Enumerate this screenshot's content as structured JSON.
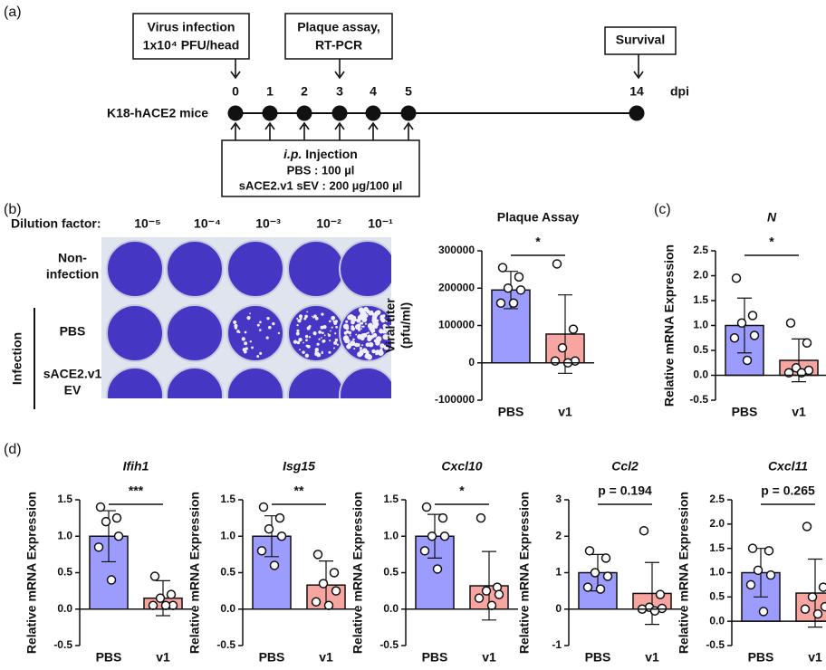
{
  "panel_labels": [
    "(a)",
    "(b)",
    "(c)",
    "(d)"
  ],
  "timeline": {
    "top_boxes": [
      {
        "lines": [
          "Virus infection",
          "1x10⁴ PFU/head"
        ]
      },
      {
        "lines": [
          "Plaque assay,",
          "RT-PCR"
        ]
      },
      {
        "lines": [
          "Survival"
        ]
      }
    ],
    "subject": "K18-hACE2 mice",
    "days": [
      "0",
      "1",
      "2",
      "3",
      "4",
      "5",
      "14"
    ],
    "unit": "dpi",
    "injection": {
      "italic": "i.p.",
      "rest": " Injection",
      "lines": [
        "PBS : 100 µl",
        "sACE2.v1 sEV : 200 µg/100 µl"
      ]
    }
  },
  "plaque_image": {
    "dilution_title": "Dilution factor:",
    "dilutions": [
      "10⁻⁵",
      "10⁻⁴",
      "10⁻³",
      "10⁻²",
      "10⁻¹"
    ],
    "group_label": "Infection",
    "rows": [
      [
        "Non-",
        "infection"
      ],
      [
        "PBS"
      ],
      [
        "sACE2.v1",
        "EV"
      ]
    ]
  },
  "chart_data": [
    {
      "type": "bar",
      "title": "Plaque Assay",
      "title_italic": false,
      "ylabel": [
        "Viral titer",
        "(pfu/ml)"
      ],
      "categories": [
        "PBS",
        "v1"
      ],
      "colors": [
        "#9c9cff",
        "#f6a5a1"
      ],
      "values": [
        195000,
        77000
      ],
      "errors": [
        50000,
        105000
      ],
      "points": [
        [
          255000,
          230000,
          200000,
          195000,
          160000,
          160000
        ],
        [
          265000,
          90000,
          40000,
          5000,
          5000,
          0
        ]
      ],
      "significance": "*",
      "ylim": [
        -100000,
        300000
      ],
      "yticks": [
        -100000,
        0,
        100000,
        200000,
        300000
      ]
    },
    {
      "type": "bar",
      "title": "N",
      "title_italic": true,
      "ylabel": [
        "Relative mRNA Expression"
      ],
      "categories": [
        "PBS",
        "v1"
      ],
      "colors": [
        "#9c9cff",
        "#f6a5a1"
      ],
      "values": [
        1.0,
        0.3
      ],
      "errors": [
        0.55,
        0.43
      ],
      "points": [
        [
          1.95,
          1.2,
          1.05,
          0.8,
          0.75,
          0.3
        ],
        [
          1.05,
          0.65,
          0.15,
          0.1,
          0.05,
          0.05
        ]
      ],
      "significance": "*",
      "ylim": [
        -0.5,
        2.5
      ],
      "yticks": [
        -0.5,
        {
          "value": 0,
          "label": "0.0"
        },
        0.5,
        {
          "value": 1,
          "label": "1.0"
        },
        1.5,
        {
          "value": 2,
          "label": "2.0"
        },
        2.5
      ]
    },
    {
      "type": "bar",
      "title": "Ifih1",
      "title_italic": true,
      "ylabel": [
        "Relative mRNA Expression"
      ],
      "categories": [
        "PBS",
        "v1"
      ],
      "colors": [
        "#9c9cff",
        "#f6a5a1"
      ],
      "values": [
        1.0,
        0.15
      ],
      "errors": [
        0.35,
        0.24
      ],
      "points": [
        [
          1.4,
          1.25,
          1.2,
          1.0,
          0.85,
          0.4
        ],
        [
          0.45,
          0.2,
          0.15,
          0.05,
          0.05,
          0.05
        ]
      ],
      "significance": "***",
      "ylim": [
        -0.5,
        1.5
      ],
      "yticks": [
        -0.5,
        {
          "value": 0,
          "label": "0.0"
        },
        0.5,
        {
          "value": 1,
          "label": "1.0"
        },
        1.5
      ]
    },
    {
      "type": "bar",
      "title": "Isg15",
      "title_italic": true,
      "ylabel": [
        "Relative mRNA Expression"
      ],
      "categories": [
        "PBS",
        "v1"
      ],
      "colors": [
        "#9c9cff",
        "#f6a5a1"
      ],
      "values": [
        1.0,
        0.33
      ],
      "errors": [
        0.28,
        0.33
      ],
      "points": [
        [
          1.4,
          1.25,
          1.1,
          1.0,
          0.8,
          0.6
        ],
        [
          0.75,
          0.5,
          0.35,
          0.25,
          0.1,
          0.05
        ]
      ],
      "significance": "**",
      "ylim": [
        -0.5,
        1.5
      ],
      "yticks": [
        -0.5,
        {
          "value": 0,
          "label": "0.0"
        },
        0.5,
        {
          "value": 1,
          "label": "1.0"
        },
        1.5
      ]
    },
    {
      "type": "bar",
      "title": "Cxcl10",
      "title_italic": true,
      "ylabel": [
        "Relative mRNA Expression"
      ],
      "categories": [
        "PBS",
        "v1"
      ],
      "colors": [
        "#9c9cff",
        "#f6a5a1"
      ],
      "values": [
        1.0,
        0.32
      ],
      "errors": [
        0.3,
        0.47
      ],
      "points": [
        [
          1.4,
          1.25,
          1.0,
          1.0,
          0.8,
          0.55
        ],
        [
          1.25,
          0.3,
          0.25,
          0.2,
          0.15,
          0.05
        ]
      ],
      "significance": "*",
      "ylim": [
        -0.5,
        1.5
      ],
      "yticks": [
        -0.5,
        {
          "value": 0,
          "label": "0.0"
        },
        0.5,
        {
          "value": 1,
          "label": "1.0"
        },
        1.5
      ]
    },
    {
      "type": "bar",
      "title": "Ccl2",
      "title_italic": true,
      "ylabel": [
        "Relative mRNA Expression"
      ],
      "categories": [
        "PBS",
        "v1"
      ],
      "colors": [
        "#9c9cff",
        "#f6a5a1"
      ],
      "values": [
        1.0,
        0.43
      ],
      "errors": [
        0.5,
        0.85
      ],
      "points": [
        [
          1.6,
          1.4,
          1.0,
          0.9,
          0.6,
          0.55
        ],
        [
          2.15,
          0.4,
          0.05,
          0.02,
          0.0,
          -0.05
        ]
      ],
      "significance": "p = 0.194",
      "ylim": [
        -1,
        3
      ],
      "yticks": [
        -1,
        0,
        1,
        2,
        3
      ]
    },
    {
      "type": "bar",
      "title": "Cxcl11",
      "title_italic": true,
      "ylabel": [
        "Relative mRNA Expression"
      ],
      "categories": [
        "PBS",
        "v1"
      ],
      "colors": [
        "#9c9cff",
        "#f6a5a1"
      ],
      "values": [
        1.0,
        0.58
      ],
      "errors": [
        0.5,
        0.7
      ],
      "points": [
        [
          1.5,
          1.45,
          1.05,
          0.95,
          0.75,
          0.2
        ],
        [
          1.95,
          0.7,
          0.5,
          0.3,
          0.25,
          0.15
        ]
      ],
      "significance": "p = 0.265",
      "ylim": [
        -0.5,
        2.5
      ],
      "yticks": [
        -0.5,
        {
          "value": 0,
          "label": "0.0"
        },
        0.5,
        {
          "value": 1,
          "label": "1.0"
        },
        1.5,
        {
          "value": 2,
          "label": "2.0"
        },
        2.5
      ]
    }
  ]
}
